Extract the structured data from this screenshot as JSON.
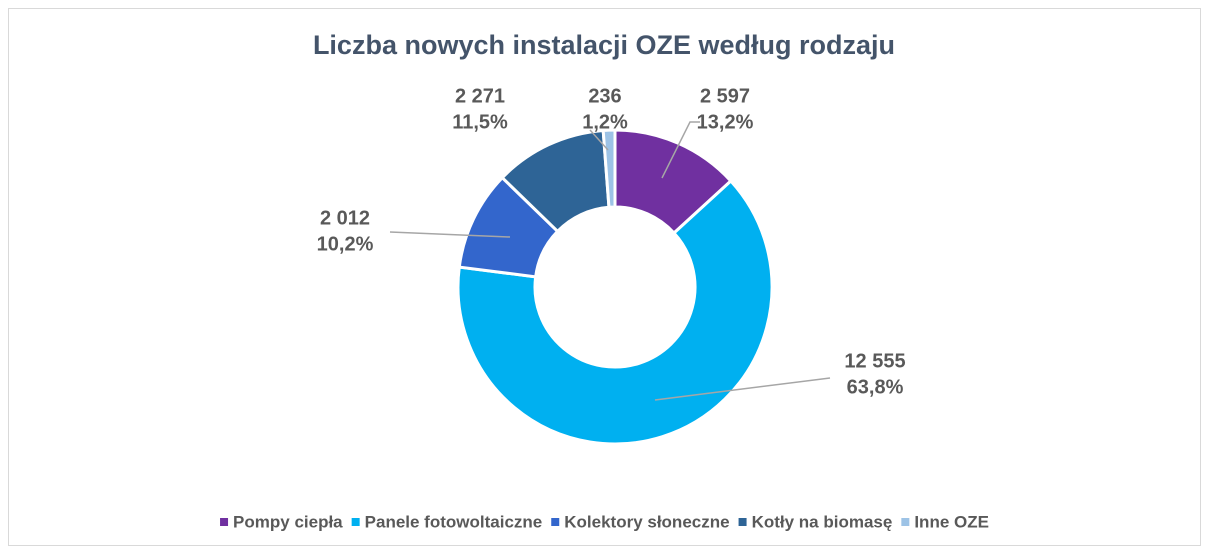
{
  "chart_data": {
    "type": "donut",
    "title": "Liczba nowych instalacji OZE według rodzaju",
    "categories": [
      "Pompy ciepła",
      "Panele fotowoltaiczne",
      "Kolektory słoneczne",
      "Kotły na biomasę",
      "Inne OZE"
    ],
    "values": [
      2597,
      12555,
      2012,
      2271,
      236
    ],
    "value_labels": [
      "2 597",
      "12 555",
      "2 012",
      "2 271",
      "236"
    ],
    "percentages": [
      13.2,
      63.8,
      10.2,
      11.5,
      1.2
    ],
    "percentage_labels": [
      "13,2%",
      "63,8%",
      "10,2%",
      "11,5%",
      "1,2%"
    ],
    "colors": [
      "#7030a0",
      "#00b0f0",
      "#3366cc",
      "#2e6496",
      "#9dc3e6"
    ],
    "legend": "bottom"
  }
}
